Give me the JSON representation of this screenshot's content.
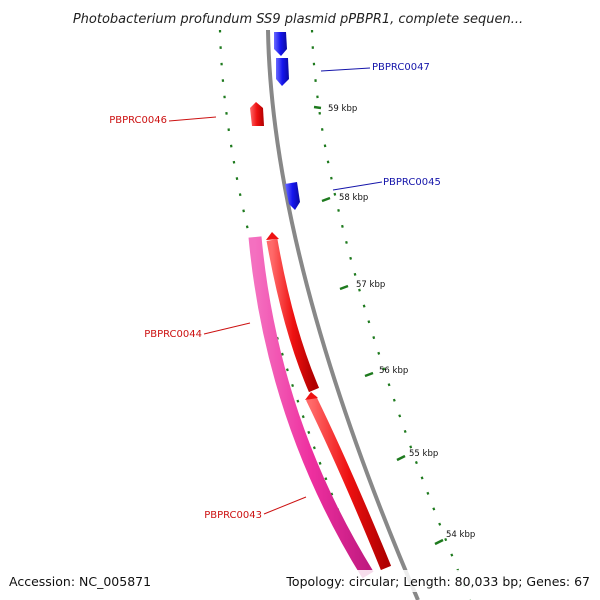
{
  "title": "Photobacterium profundum SS9 plasmid pPBPR1, complete sequen...",
  "footer": {
    "accession": "Accession: NC_005871",
    "summary": "Topology: circular; Length: 80,033 bp; Genes: 67"
  },
  "colors": {
    "backbone": "#888888",
    "forward": "#1515ee",
    "reverse": "#ee1111",
    "cds": "#ee2f9f",
    "ticks": "#1e7a1e"
  },
  "scale_labels": [
    "59 kbp",
    "58 kbp",
    "57 kbp",
    "56 kbp",
    "55 kbp",
    "54 kbp"
  ],
  "genes": [
    {
      "label": "PBPRC0047",
      "strand": "forward",
      "color": "#1515aa"
    },
    {
      "label": "PBPRC0046",
      "strand": "reverse",
      "color": "#cc1111"
    },
    {
      "label": "PBPRC0045",
      "strand": "forward",
      "color": "#1515aa"
    },
    {
      "label": "PBPRC0044",
      "strand": "reverse",
      "color": "#cc1111"
    },
    {
      "label": "PBPRC0043",
      "strand": "reverse",
      "color": "#cc1111"
    }
  ]
}
